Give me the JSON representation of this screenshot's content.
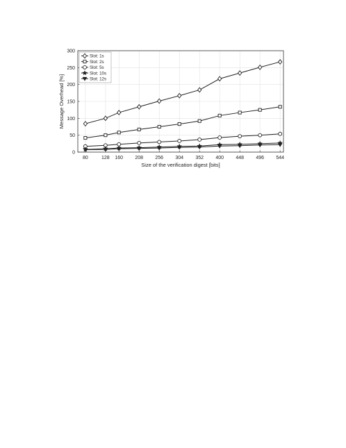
{
  "chart_data": {
    "type": "line",
    "title": "",
    "xlabel": "Size of the verification digest [bits]",
    "ylabel": "Message Overhead [%]",
    "x": [
      80,
      128,
      160,
      208,
      256,
      304,
      352,
      400,
      448,
      496,
      544
    ],
    "x_ticks": [
      "80",
      "128",
      "160",
      "208",
      "256",
      "304",
      "352",
      "400",
      "448",
      "496",
      "544"
    ],
    "y_ticks": [
      "0",
      "50",
      "100",
      "150",
      "200",
      "250",
      "300"
    ],
    "xlim": [
      62,
      552
    ],
    "ylim": [
      0,
      300
    ],
    "grid": true,
    "legend_position": "top-left",
    "series": [
      {
        "name": "Slot: 1s",
        "marker": "diamond",
        "values": [
          84,
          100,
          117,
          134,
          151,
          167,
          184,
          217,
          234,
          251,
          267
        ]
      },
      {
        "name": "Slot: 2s",
        "marker": "square",
        "values": [
          42,
          50,
          58,
          67,
          75,
          83,
          92,
          108,
          117,
          125,
          134
        ]
      },
      {
        "name": "Slot: 5s",
        "marker": "circle",
        "values": [
          17,
          20,
          23,
          27,
          30,
          33,
          37,
          43,
          47,
          50,
          54
        ]
      },
      {
        "name": "Slot: 10s",
        "marker": "star",
        "values": [
          8,
          10,
          12,
          13,
          15,
          17,
          18,
          22,
          23,
          25,
          27
        ]
      },
      {
        "name": "Slot: 12s",
        "marker": "triangle-down",
        "values": [
          7,
          8,
          10,
          11,
          12,
          14,
          15,
          18,
          19,
          21,
          22
        ]
      }
    ],
    "colors": {
      "line": "#222222",
      "grid": "#e2e2e2",
      "axis": "#333333"
    }
  }
}
